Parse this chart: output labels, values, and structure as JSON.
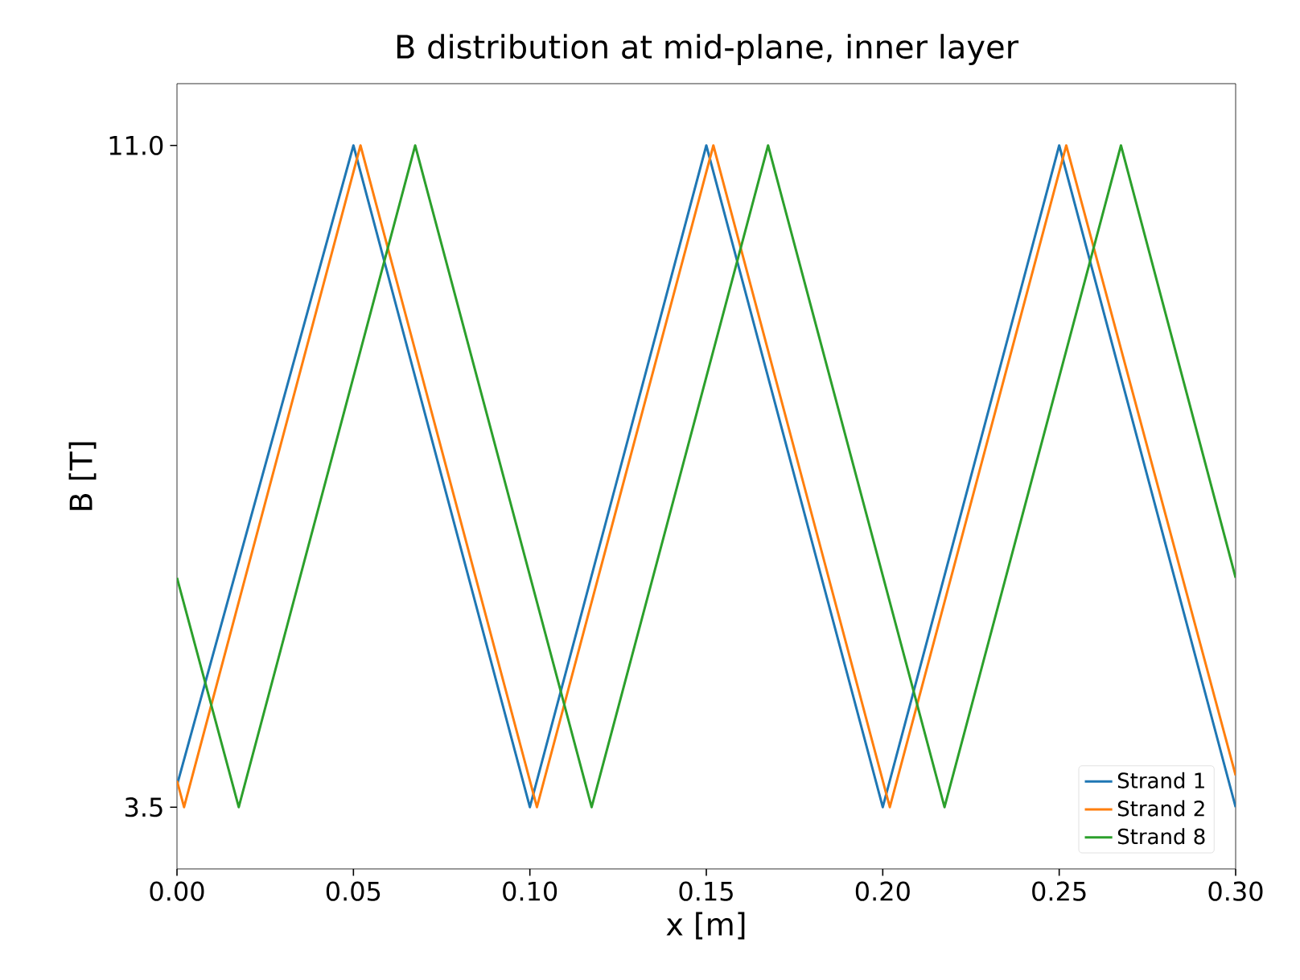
{
  "chart_data": {
    "type": "line",
    "title": "B distribution at mid-plane, inner layer",
    "xlabel": "x [m]",
    "ylabel": "B [T]",
    "xlim": [
      0,
      0.3
    ],
    "ylim": [
      2.8,
      11.7
    ],
    "xticks": [
      {
        "value": 0,
        "label": "0.00"
      },
      {
        "value": 0.05,
        "label": "0.05"
      },
      {
        "value": 0.1,
        "label": "0.10"
      },
      {
        "value": 0.15,
        "label": "0.15"
      },
      {
        "value": 0.2,
        "label": "0.20"
      },
      {
        "value": 0.25,
        "label": "0.25"
      },
      {
        "value": 0.3,
        "label": "0.30"
      }
    ],
    "yticks": [
      {
        "value": 3.5,
        "label": "3.5"
      },
      {
        "value": 11,
        "label": "11.0"
      }
    ],
    "grid": false,
    "legend": "bottom right",
    "marker": "none",
    "line_style": "solid",
    "series": [
      {
        "name": "Strand 1",
        "color": "#1f77b4",
        "x": [
          0,
          0.05,
          0.1,
          0.15,
          0.2,
          0.25,
          0.3
        ],
        "values": [
          3.75,
          11,
          3.5,
          11,
          3.5,
          11,
          3.5
        ]
      },
      {
        "name": "Strand 2",
        "color": "#ff7f0e",
        "x": [
          0,
          0.002,
          0.052,
          0.102,
          0.152,
          0.202,
          0.252,
          0.3
        ],
        "values": [
          3.8,
          3.5,
          11,
          3.5,
          11,
          3.5,
          11,
          3.86
        ]
      },
      {
        "name": "Strand 8",
        "color": "#2ca02c",
        "x": [
          0,
          0.0175,
          0.0675,
          0.1175,
          0.1675,
          0.2175,
          0.2675,
          0.3
        ],
        "values": [
          6.1,
          3.5,
          11,
          3.5,
          11,
          3.5,
          11,
          6.1
        ]
      }
    ]
  }
}
